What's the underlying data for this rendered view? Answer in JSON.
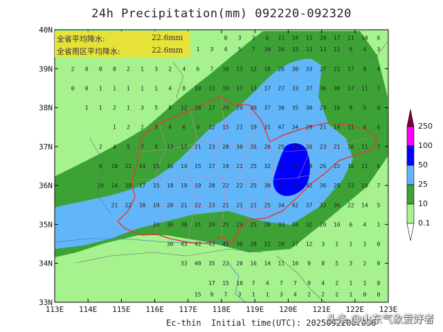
{
  "title": "24h Precipitation(mm) 092220-092320",
  "footer": "Ec-thin  Initial time(UTC): 2025092200.036",
  "watermark": "头条 @山东气象爱好者",
  "info": {
    "province_label": "全省平均降水:",
    "province_value": "22.6mm",
    "rain_area_label": "全省雨区平均降水:",
    "rain_area_value": "22.6mm"
  },
  "axes": {
    "lon_ticks": [
      "113E",
      "114E",
      "115E",
      "116E",
      "117E",
      "118E",
      "119E",
      "120E",
      "121E",
      "122E",
      "123E"
    ],
    "lat_ticks": [
      "33N",
      "34N",
      "35N",
      "36N",
      "37N",
      "38N",
      "39N",
      "40N"
    ],
    "lon_range": [
      113,
      123
    ],
    "lat_range": [
      33,
      40
    ]
  },
  "legend": {
    "levels": [
      "0.1",
      "10",
      "25",
      "50",
      "100",
      "250"
    ],
    "colors": [
      "#a5f28f",
      "#3ca236",
      "#61b6f9",
      "#0000ff",
      "#fb00fa",
      "#800040"
    ],
    "below_color": "#ffffff"
  },
  "grid_values": [
    {
      "lat": 39.8,
      "vals": [
        "0",
        "3",
        "3",
        "6",
        "11",
        "14",
        "13",
        "20",
        "17",
        "11",
        "10",
        "6"
      ]
    },
    {
      "lat": 39.5,
      "vals": [
        "1",
        "3",
        "4",
        "5",
        "7",
        "10",
        "16",
        "15",
        "13",
        "13",
        "11",
        "6",
        "4",
        "3"
      ]
    },
    {
      "lat": 39.0,
      "vals": [
        "2",
        "0",
        "0",
        "0",
        "2",
        "1",
        "3",
        "2",
        "4",
        "6",
        "7",
        "10",
        "13",
        "12",
        "18",
        "26",
        "30",
        "33",
        "27",
        "21",
        "17",
        "8",
        "4"
      ]
    },
    {
      "lat": 38.5,
      "vals": [
        "0",
        "0",
        "1",
        "1",
        "1",
        "1",
        "1",
        "4",
        "8",
        "10",
        "13",
        "16",
        "17",
        "13",
        "17",
        "27",
        "33",
        "37",
        "36",
        "30",
        "17",
        "11",
        "7"
      ]
    },
    {
      "lat": 38.0,
      "vals": [
        "1",
        "1",
        "2",
        "1",
        "3",
        "5",
        "8",
        "12",
        "18",
        "17",
        "24",
        "29",
        "30",
        "37",
        "36",
        "35",
        "30",
        "23",
        "16",
        "9",
        "5",
        "4"
      ]
    },
    {
      "lat": 37.5,
      "vals": [
        "1",
        "2",
        "2",
        "3",
        "4",
        "6",
        "9",
        "12",
        "15",
        "21",
        "19",
        "31",
        "47",
        "34",
        "29",
        "21",
        "14",
        "11",
        "6",
        "6"
      ]
    },
    {
      "lat": 37.0,
      "vals": [
        "2",
        "4",
        "5",
        "7",
        "9",
        "13",
        "17",
        "21",
        "23",
        "28",
        "30",
        "35",
        "26",
        "25",
        "26",
        "26",
        "23",
        "21",
        "16",
        "11",
        "7"
      ]
    },
    {
      "lat": 36.5,
      "vals": [
        "9",
        "10",
        "12",
        "14",
        "15",
        "16",
        "14",
        "15",
        "17",
        "19",
        "21",
        "25",
        "32",
        "43",
        "40",
        "29",
        "26",
        "22",
        "16",
        "11",
        "6"
      ]
    },
    {
      "lat": 36.0,
      "vals": [
        "10",
        "14",
        "18",
        "17",
        "15",
        "18",
        "19",
        "19",
        "20",
        "22",
        "22",
        "25",
        "30",
        "33",
        "42",
        "42",
        "36",
        "29",
        "23",
        "15",
        "7"
      ]
    },
    {
      "lat": 35.5,
      "vals": [
        "21",
        "22",
        "18",
        "19",
        "20",
        "21",
        "22",
        "23",
        "21",
        "21",
        "21",
        "25",
        "34",
        "42",
        "37",
        "33",
        "36",
        "22",
        "14",
        "5"
      ]
    },
    {
      "lat": 35.0,
      "vals": [
        "33",
        "36",
        "38",
        "31",
        "29",
        "25",
        "23",
        "25",
        "26",
        "33",
        "34",
        "32",
        "20",
        "10",
        "6",
        "4",
        "1"
      ]
    },
    {
      "lat": 34.5,
      "vals": [
        "30",
        "43",
        "42",
        "43",
        "45",
        "36",
        "28",
        "22",
        "20",
        "17",
        "12",
        "3",
        "1",
        "1",
        "1",
        "0"
      ]
    },
    {
      "lat": 34.0,
      "vals": [
        "33",
        "40",
        "35",
        "22",
        "20",
        "16",
        "14",
        "11",
        "10",
        "9",
        "8",
        "5",
        "3",
        "2",
        "0"
      ]
    },
    {
      "lat": 33.5,
      "vals": [
        "17",
        "15",
        "10",
        "7",
        "4",
        "7",
        "7",
        "9",
        "4",
        "2",
        "1",
        "1",
        "0"
      ]
    },
    {
      "lat": 33.2,
      "vals": [
        "15",
        "9",
        "7",
        "3",
        "1",
        "1",
        "3",
        "4",
        "2",
        "2",
        "2",
        "1",
        "0",
        "0"
      ]
    }
  ]
}
